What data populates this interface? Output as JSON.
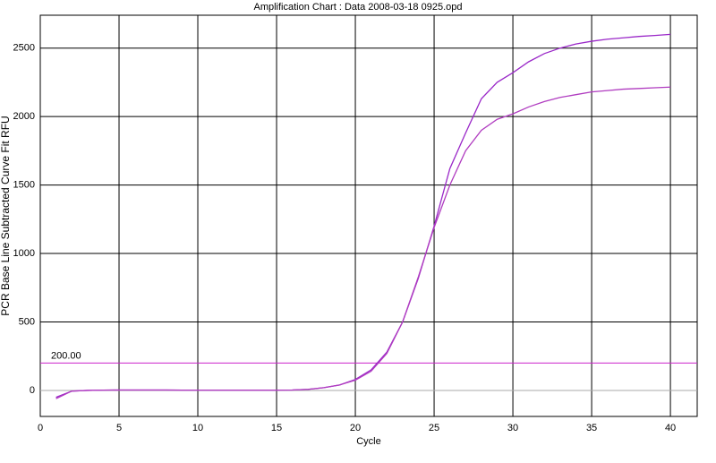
{
  "chart_data": {
    "type": "line",
    "title": "Amplification Chart : Data 2008-03-18 0925.opd",
    "x_label": "Cycle",
    "y_label": "PCR Base Line Subtracted Curve Fit RFU",
    "x": [
      1,
      2,
      3,
      4,
      5,
      6,
      7,
      8,
      9,
      10,
      11,
      12,
      13,
      14,
      15,
      16,
      17,
      18,
      19,
      20,
      21,
      22,
      23,
      24,
      25,
      26,
      27,
      28,
      29,
      30,
      31,
      32,
      33,
      34,
      35,
      36,
      37,
      38,
      39,
      40
    ],
    "series": [
      {
        "color": "#9a28c8",
        "values": [
          -50,
          -5,
          0,
          2,
          3,
          3,
          3,
          3,
          2,
          2,
          2,
          2,
          2,
          2,
          2,
          3,
          8,
          20,
          40,
          80,
          150,
          280,
          500,
          820,
          1200,
          1620,
          1880,
          2130,
          2250,
          2320,
          2400,
          2460,
          2500,
          2530,
          2550,
          2565,
          2575,
          2585,
          2592,
          2600
        ]
      },
      {
        "color": "#b03cc0",
        "values": [
          -60,
          -5,
          0,
          2,
          3,
          3,
          3,
          3,
          2,
          2,
          2,
          2,
          2,
          2,
          2,
          3,
          8,
          20,
          40,
          75,
          140,
          270,
          500,
          830,
          1190,
          1500,
          1750,
          1900,
          1980,
          2020,
          2070,
          2110,
          2140,
          2160,
          2180,
          2190,
          2200,
          2205,
          2210,
          2215
        ]
      }
    ],
    "threshold": {
      "value": 200,
      "label": "200.00",
      "color": "#cc22cc"
    },
    "xlim": [
      0,
      41.7
    ],
    "xticks": [
      0,
      5,
      10,
      15,
      20,
      25,
      30,
      35,
      40
    ],
    "ylim": [
      -190,
      2740
    ],
    "yticks": [
      0,
      500,
      1000,
      1500,
      2000,
      2500
    ],
    "grid": true
  }
}
